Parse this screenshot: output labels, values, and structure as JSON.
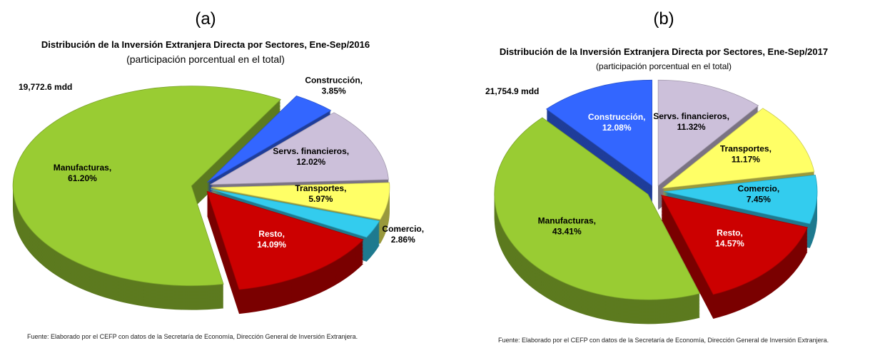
{
  "chart_data": [
    {
      "type": "pie",
      "panel": "(a)",
      "title": "Distribución  de la Inversión Extranjera Directa por Sectores, Ene-Sep/2016",
      "subtitle": "(participación  porcentual  en el total)",
      "annotation": "19,772.6 mdd",
      "source": "Fuente: Elaborado por el CEFP con datos de la Secretaría de Economía, Dirección General de Inversión Extranjera.",
      "categories": [
        "Construcción,",
        "Servs. financieros,",
        "Transportes,",
        "Comercio,",
        "Resto,",
        "Manufacturas,"
      ],
      "values": [
        3.85,
        12.02,
        5.97,
        2.86,
        14.09,
        61.2
      ],
      "value_labels": [
        "3.85%",
        "12.02%",
        "5.97%",
        "2.86%",
        "14.09%",
        "61.20%"
      ],
      "colors": [
        "#3366ff",
        "#ccc0da",
        "#ffff66",
        "#33ccee",
        "#cc0000",
        "#99cc33"
      ]
    },
    {
      "type": "pie",
      "panel": "(b)",
      "title": "Distribución  de la Inversión Extranjera Directa por Sectores, Ene-Sep/2017",
      "subtitle": "(participación porcentual en el total)",
      "annotation": "21,754.9 mdd",
      "source": "Fuente: Elaborado por el CEFP con datos de la Secretaría de Economía, Dirección General de Inversión Extranjera.",
      "categories": [
        "Servs. financieros,",
        "Transportes,",
        "Comercio,",
        "Resto,",
        "Manufacturas,",
        "Construcción,"
      ],
      "values": [
        11.32,
        11.17,
        7.45,
        14.57,
        43.41,
        12.08
      ],
      "value_labels": [
        "11.32%",
        "11.17%",
        "7.45%",
        "14.57%",
        "43.41%",
        "12.08%"
      ],
      "colors": [
        "#ccc0da",
        "#ffff66",
        "#33ccee",
        "#cc0000",
        "#99cc33",
        "#3366ff"
      ]
    }
  ]
}
